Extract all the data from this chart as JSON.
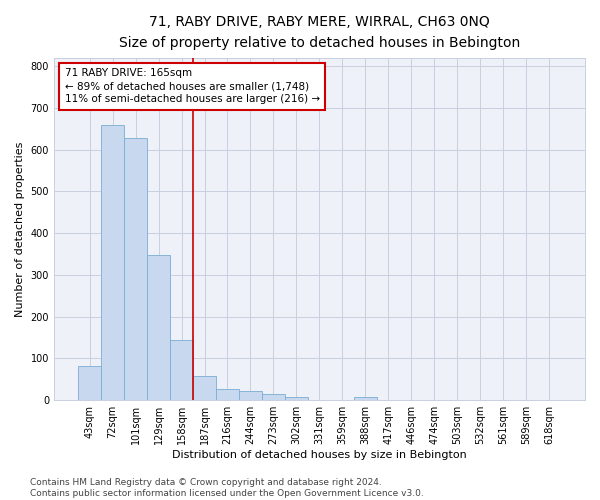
{
  "title": "71, RABY DRIVE, RABY MERE, WIRRAL, CH63 0NQ",
  "subtitle": "Size of property relative to detached houses in Bebington",
  "xlabel": "Distribution of detached houses by size in Bebington",
  "ylabel": "Number of detached properties",
  "categories": [
    "43sqm",
    "72sqm",
    "101sqm",
    "129sqm",
    "158sqm",
    "187sqm",
    "216sqm",
    "244sqm",
    "273sqm",
    "302sqm",
    "331sqm",
    "359sqm",
    "388sqm",
    "417sqm",
    "446sqm",
    "474sqm",
    "503sqm",
    "532sqm",
    "561sqm",
    "589sqm",
    "618sqm"
  ],
  "values": [
    83,
    660,
    628,
    348,
    143,
    58,
    26,
    22,
    14,
    8,
    0,
    0,
    8,
    0,
    0,
    0,
    0,
    0,
    0,
    0,
    0
  ],
  "bar_color": "#c8d8ee",
  "bar_edge_color": "#7aadd4",
  "property_line_x": 4.5,
  "property_label": "71 RABY DRIVE: 165sqm",
  "annotation_line1": "← 89% of detached houses are smaller (1,748)",
  "annotation_line2": "11% of semi-detached houses are larger (216) →",
  "annotation_box_color": "#ffffff",
  "annotation_box_edge_color": "#cc0000",
  "vline_color": "#cc0000",
  "ylim": [
    0,
    820
  ],
  "yticks": [
    0,
    100,
    200,
    300,
    400,
    500,
    600,
    700,
    800
  ],
  "grid_color": "#c8d0e0",
  "plot_bg_color": "#eef2f8",
  "fig_bg_color": "#ffffff",
  "footer_line1": "Contains HM Land Registry data © Crown copyright and database right 2024.",
  "footer_line2": "Contains public sector information licensed under the Open Government Licence v3.0.",
  "title_fontsize": 10,
  "subtitle_fontsize": 9,
  "axis_label_fontsize": 8,
  "tick_fontsize": 7,
  "annotation_fontsize": 7.5,
  "footer_fontsize": 6.5
}
